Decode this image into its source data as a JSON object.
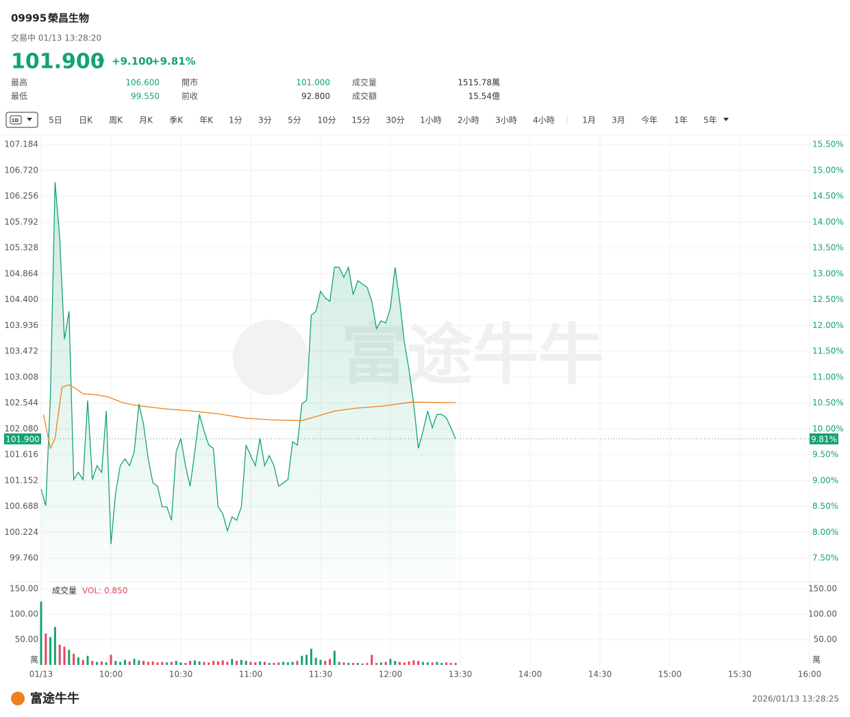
{
  "header": {
    "code": "09995",
    "name": "榮昌生物",
    "status": "交易中 01/13 13:28:20",
    "price": "101.900",
    "change": "+9.100",
    "change_pct": "+9.81%",
    "stats": [
      {
        "label": "最高",
        "value": "106.600"
      },
      {
        "label": "最低",
        "value": "99.550"
      },
      {
        "label": "開市",
        "value": "101.000"
      },
      {
        "label": "前收",
        "value": "92.800"
      },
      {
        "label": "成交量",
        "value": "1515.78萬"
      },
      {
        "label": "成交額",
        "value": "15.54億"
      }
    ]
  },
  "tabs": [
    "1D",
    "5日",
    "日K",
    "周K",
    "月K",
    "季K",
    "年K",
    "1分",
    "3分",
    "5分",
    "10分",
    "15分",
    "30分",
    "1小時",
    "2小時",
    "3小時",
    "4小時",
    "1月",
    "3月",
    "今年",
    "1年",
    "5年"
  ],
  "chart_data": {
    "type": "line",
    "watermark": "富途牛牛",
    "xlim": [
      0,
      330
    ],
    "xticks": [
      {
        "value": 0,
        "label": "01/13"
      },
      {
        "value": 30,
        "label": "10:00"
      },
      {
        "value": 60,
        "label": "10:30"
      },
      {
        "value": 90,
        "label": "11:00"
      },
      {
        "value": 120,
        "label": "11:30"
      },
      {
        "value": 150,
        "label": "12:00"
      },
      {
        "value": 180,
        "label": "13:30"
      },
      {
        "value": 210,
        "label": "14:00"
      },
      {
        "value": 240,
        "label": "14:30"
      },
      {
        "value": 270,
        "label": "15:00"
      },
      {
        "value": 300,
        "label": "15:30"
      },
      {
        "value": 330,
        "label": "16:00"
      }
    ],
    "ylim": [
      99.76,
      107.184
    ],
    "yticks": [
      107.184,
      {
        "value": 106.72,
        "label": "106.720"
      },
      106.256,
      105.792,
      105.328,
      104.864,
      {
        "value": 104.4,
        "label": "104.400"
      },
      103.936,
      103.472,
      103.008,
      102.544,
      {
        "value": 102.08,
        "label": "102.080"
      },
      101.616,
      101.152,
      100.688,
      100.224,
      {
        "value": 99.76,
        "label": "99.760"
      }
    ],
    "y2lim": [
      7.5,
      15.5
    ],
    "y2ticks": [
      {
        "value": 15.5,
        "label": "15.50%"
      },
      {
        "value": 15,
        "label": "15.00%"
      },
      {
        "value": 14.5,
        "label": "14.50%"
      },
      {
        "value": 14,
        "label": "14.00%"
      },
      {
        "value": 13.5,
        "label": "13.50%"
      },
      {
        "value": 13,
        "label": "13.00%"
      },
      {
        "value": 12.5,
        "label": "12.50%"
      },
      {
        "value": 12,
        "label": "12.00%"
      },
      {
        "value": 11.5,
        "label": "11.50%"
      },
      {
        "value": 11,
        "label": "11.00%"
      },
      {
        "value": 10.5,
        "label": "10.50%"
      },
      {
        "value": 10,
        "label": "10.00%"
      },
      {
        "value": 9.5,
        "label": "9.50%"
      },
      {
        "value": 9,
        "label": "9.00%"
      },
      {
        "value": 8.5,
        "label": "8.50%"
      },
      {
        "value": 8,
        "label": "8.00%"
      },
      {
        "value": 7.5,
        "label": "7.50%"
      }
    ],
    "grid": true,
    "last": {
      "value": 101.9,
      "label": "101.900",
      "pct_label": "9.81%"
    },
    "series": [
      {
        "color": "#13a36f",
        "x": [
          0,
          2,
          4,
          6,
          8,
          10,
          12,
          14,
          16,
          18,
          20,
          22,
          24,
          26,
          28,
          30,
          32,
          34,
          36,
          38,
          40,
          42,
          44,
          46,
          48,
          50,
          52,
          54,
          56,
          58,
          60,
          62,
          64,
          66,
          68,
          70,
          72,
          74,
          76,
          78,
          80,
          82,
          84,
          86,
          88,
          90,
          92,
          94,
          96,
          98,
          100,
          102,
          104,
          106,
          108,
          110,
          112,
          114,
          116,
          118,
          120,
          122,
          124,
          126,
          128,
          130,
          132,
          134,
          136,
          138,
          140,
          142,
          144,
          146,
          148,
          150,
          152,
          154,
          156,
          158,
          160,
          162,
          164,
          166,
          168,
          170,
          172,
          174,
          176,
          178
        ],
        "values": [
          101.0,
          100.7,
          102.67,
          106.51,
          105.5,
          103.69,
          104.19,
          101.17,
          101.3,
          101.17,
          102.59,
          101.17,
          101.42,
          101.3,
          102.4,
          100.01,
          100.93,
          101.42,
          101.54,
          101.42,
          101.67,
          102.53,
          102.16,
          101.54,
          101.11,
          101.05,
          100.68,
          100.68,
          100.44,
          101.67,
          101.91,
          101.42,
          101.05,
          101.67,
          102.34,
          102.04,
          101.79,
          101.73,
          100.68,
          100.56,
          100.25,
          100.5,
          100.44,
          100.68,
          101.79,
          101.6,
          101.42,
          101.91,
          101.42,
          101.6,
          101.42,
          101.05,
          101.11,
          101.17,
          101.85,
          101.79,
          102.53,
          102.59,
          104.12,
          104.19,
          104.55,
          104.43,
          104.37,
          104.98,
          104.98,
          104.8,
          104.98,
          104.49,
          104.74,
          104.68,
          104.62,
          104.37,
          103.88,
          104.02,
          103.98,
          104.25,
          104.98,
          104.37,
          103.63,
          103.14,
          102.53,
          101.73,
          102.04,
          102.4,
          102.1,
          102.34,
          102.34,
          102.28,
          102.1,
          101.9
        ]
      },
      {
        "color": "#f07f1e",
        "x": [
          1,
          4,
          6,
          8,
          9,
          12,
          15,
          18,
          24,
          29,
          35,
          41,
          53,
          65,
          76,
          88,
          100,
          112,
          118,
          126,
          135,
          147,
          159,
          178
        ],
        "values": [
          102.34,
          101.73,
          101.91,
          102.53,
          102.83,
          102.87,
          102.8,
          102.71,
          102.69,
          102.65,
          102.55,
          102.5,
          102.44,
          102.4,
          102.35,
          102.27,
          102.24,
          102.23,
          102.3,
          102.4,
          102.45,
          102.49,
          102.56,
          102.55
        ]
      }
    ],
    "volume": {
      "name": "成交量",
      "indicator": "VOL: 0.850",
      "unit": "萬",
      "up_color": "#13a36f",
      "down_color": "#e8455b",
      "ylim": [
        0,
        150
      ],
      "yticks": [
        {
          "value": 150,
          "label": "150.00"
        },
        {
          "value": 100,
          "label": "100.00"
        },
        {
          "value": 50,
          "label": "50.00"
        }
      ],
      "values": [
        125,
        62,
        55,
        75,
        40,
        36,
        30,
        22,
        15,
        10,
        18,
        8,
        6,
        7,
        5,
        20,
        8,
        6,
        10,
        7,
        12,
        9,
        8,
        6,
        7,
        5,
        6,
        5,
        6,
        8,
        5,
        4,
        8,
        9,
        7,
        6,
        5,
        8,
        7,
        9,
        6,
        12,
        8,
        10,
        8,
        6,
        5,
        7,
        6,
        4,
        4,
        5,
        6,
        5,
        6,
        8,
        18,
        20,
        32,
        14,
        10,
        8,
        12,
        28,
        6,
        5,
        4,
        4,
        4,
        3,
        4,
        20,
        4,
        5,
        6,
        12,
        8,
        6,
        5,
        7,
        9,
        8,
        6,
        5,
        5,
        6,
        4,
        5,
        4,
        4
      ]
    }
  },
  "footer": {
    "brand": "富途牛牛",
    "timestamp": "2026/01/13 13:28:25"
  }
}
